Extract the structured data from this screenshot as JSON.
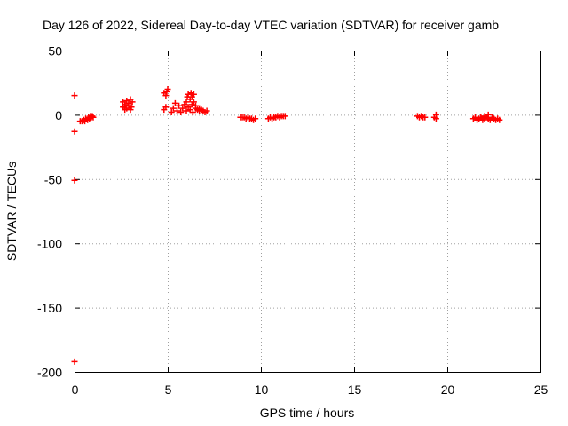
{
  "chart_data": {
    "type": "scatter",
    "title": "Day 126 of 2022, Sidereal Day-to-day VTEC variation (SDTVAR) for receiver gamb",
    "xlabel": "GPS time / hours",
    "ylabel": "SDTVAR / TECUs",
    "xlim": [
      0,
      25
    ],
    "ylim": [
      -200,
      50
    ],
    "xticks": [
      "0",
      "5",
      "10",
      "15",
      "20",
      "25"
    ],
    "yticks": [
      "50",
      "0",
      "-50",
      "-100",
      "-150",
      "-200"
    ],
    "xtick_values": [
      0,
      5,
      10,
      15,
      20,
      25
    ],
    "ytick_values": [
      50,
      0,
      -50,
      -100,
      -150,
      -200
    ],
    "grid": true,
    "marker": "+",
    "color": "#ff0000",
    "series": [
      {
        "name": "SDTVAR",
        "points": [
          [
            0.0,
            15
          ],
          [
            0.0,
            -13
          ],
          [
            0.0,
            -51
          ],
          [
            0.0,
            -192
          ],
          [
            0.3,
            -5
          ],
          [
            0.4,
            -5
          ],
          [
            0.5,
            -4
          ],
          [
            0.55,
            -5
          ],
          [
            0.6,
            -3
          ],
          [
            0.7,
            -4
          ],
          [
            0.75,
            -2
          ],
          [
            0.8,
            -3
          ],
          [
            0.85,
            -1
          ],
          [
            0.9,
            -2
          ],
          [
            0.95,
            -1
          ],
          [
            1.0,
            -2
          ],
          [
            2.6,
            6
          ],
          [
            2.6,
            10
          ],
          [
            2.7,
            4
          ],
          [
            2.7,
            8
          ],
          [
            2.8,
            11
          ],
          [
            2.8,
            5
          ],
          [
            2.9,
            7
          ],
          [
            2.9,
            9
          ],
          [
            3.0,
            12
          ],
          [
            3.0,
            4
          ],
          [
            3.05,
            6
          ],
          [
            3.1,
            10
          ],
          [
            4.8,
            17
          ],
          [
            4.9,
            15
          ],
          [
            4.95,
            18
          ],
          [
            5.0,
            20
          ],
          [
            4.8,
            4
          ],
          [
            4.9,
            6
          ],
          [
            5.2,
            2
          ],
          [
            5.3,
            5
          ],
          [
            5.4,
            9
          ],
          [
            5.5,
            3
          ],
          [
            5.6,
            7
          ],
          [
            5.7,
            2
          ],
          [
            5.8,
            5
          ],
          [
            5.9,
            8
          ],
          [
            6.0,
            3
          ],
          [
            6.0,
            10
          ],
          [
            6.05,
            14
          ],
          [
            6.1,
            6
          ],
          [
            6.1,
            16
          ],
          [
            6.2,
            12
          ],
          [
            6.2,
            4
          ],
          [
            6.25,
            17
          ],
          [
            6.3,
            8
          ],
          [
            6.3,
            14
          ],
          [
            6.35,
            2
          ],
          [
            6.4,
            10
          ],
          [
            6.4,
            16
          ],
          [
            6.5,
            5
          ],
          [
            6.6,
            4
          ],
          [
            6.7,
            3
          ],
          [
            6.8,
            4
          ],
          [
            6.9,
            3
          ],
          [
            7.0,
            2
          ],
          [
            7.1,
            3
          ],
          [
            6.5,
            7
          ],
          [
            6.7,
            5
          ],
          [
            8.9,
            -2
          ],
          [
            9.0,
            -2
          ],
          [
            9.1,
            -2
          ],
          [
            9.2,
            -3
          ],
          [
            9.3,
            -2
          ],
          [
            9.4,
            -3
          ],
          [
            9.5,
            -3
          ],
          [
            9.6,
            -4
          ],
          [
            9.7,
            -3
          ],
          [
            10.4,
            -3
          ],
          [
            10.5,
            -2
          ],
          [
            10.6,
            -3
          ],
          [
            10.7,
            -2
          ],
          [
            10.8,
            -2
          ],
          [
            10.9,
            -1
          ],
          [
            11.0,
            -2
          ],
          [
            11.1,
            -1
          ],
          [
            11.2,
            -1
          ],
          [
            11.3,
            -1
          ],
          [
            18.4,
            -1
          ],
          [
            18.5,
            -2
          ],
          [
            18.6,
            -1
          ],
          [
            18.7,
            -2
          ],
          [
            18.8,
            -2
          ],
          [
            19.3,
            -2
          ],
          [
            19.4,
            0
          ],
          [
            19.4,
            -3
          ],
          [
            21.4,
            -3
          ],
          [
            21.5,
            -2
          ],
          [
            21.6,
            -4
          ],
          [
            21.7,
            -3
          ],
          [
            21.8,
            -2
          ],
          [
            21.9,
            -4
          ],
          [
            22.0,
            -3
          ],
          [
            22.0,
            -1
          ],
          [
            22.1,
            -2
          ],
          [
            22.2,
            -3
          ],
          [
            22.2,
            0
          ],
          [
            22.3,
            -4
          ],
          [
            22.4,
            -2
          ],
          [
            22.5,
            -3
          ],
          [
            22.6,
            -4
          ],
          [
            22.7,
            -3
          ],
          [
            22.8,
            -4
          ]
        ]
      }
    ]
  }
}
